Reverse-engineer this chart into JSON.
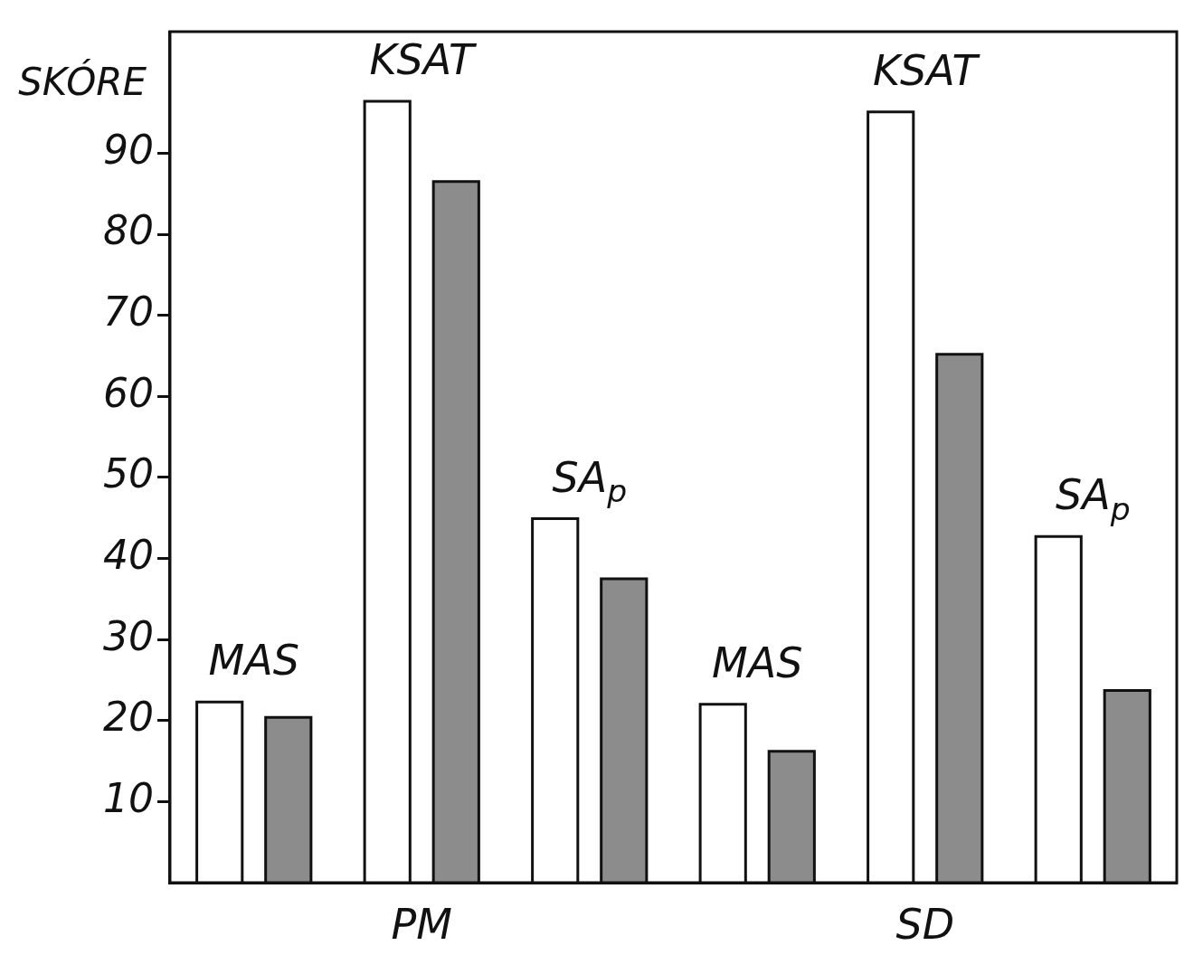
{
  "chart_data": {
    "type": "bar",
    "ylabel": "SKÓRE",
    "categories": [
      "MAS",
      "KSAT",
      "SA$_{p}$",
      "MAS",
      "KSAT",
      "SA$_{p}$"
    ],
    "series": [
      {
        "color": "#ffffff",
        "values": [
          22.3,
          96.4,
          44.9,
          22.0,
          95.1,
          42.7
        ]
      },
      {
        "color": "#8c8c8c",
        "values": [
          20.4,
          86.5,
          37.5,
          16.2,
          65.2,
          23.7
        ]
      }
    ],
    "ylim": [
      0,
      105
    ],
    "yticks": [
      10,
      20,
      30,
      40,
      50,
      60,
      70,
      80,
      90
    ],
    "annotations": [
      "PM",
      "SD"
    ],
    "grid": false,
    "legend": false
  }
}
